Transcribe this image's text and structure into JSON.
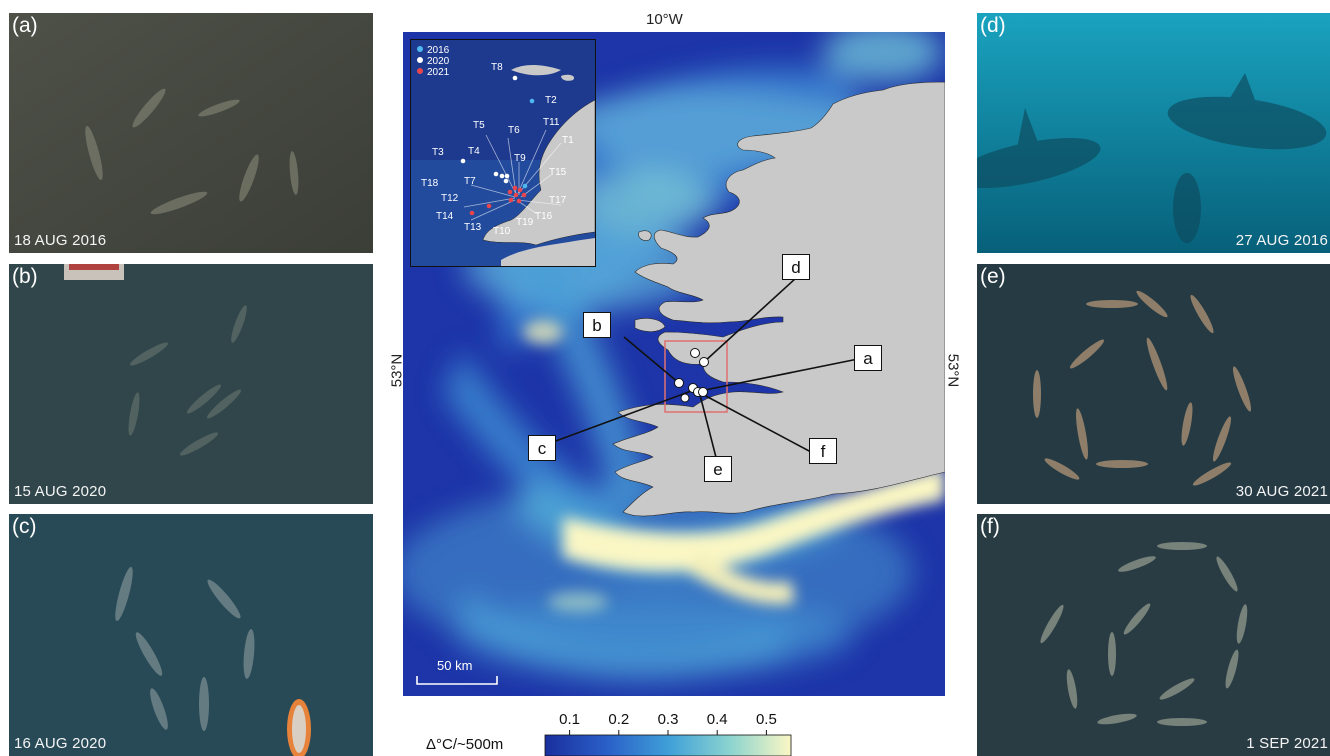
{
  "photos": {
    "a": {
      "label": "(a)",
      "date": "18 AUG 2016"
    },
    "b": {
      "label": "(b)",
      "date": "15 AUG 2020"
    },
    "c": {
      "label": "(c)",
      "date": "16 AUG 2020"
    },
    "d": {
      "label": "(d)",
      "date": "27 AUG 2016"
    },
    "e": {
      "label": "(e)",
      "date": "30 AUG 2021"
    },
    "f": {
      "label": "(f)",
      "date": "1 SEP 2021"
    }
  },
  "map": {
    "top_label": "10°W",
    "left_label": "53°N",
    "right_label": "53°N",
    "scale_bar": "50 km",
    "callouts": [
      "a",
      "b",
      "c",
      "d",
      "e",
      "f"
    ]
  },
  "inset": {
    "legend": [
      {
        "label": "2016",
        "color": "#4fb8ef"
      },
      {
        "label": "2020",
        "color": "#ffffff"
      },
      {
        "label": "2021",
        "color": "#e8454c"
      }
    ],
    "tags": [
      "T8",
      "T2",
      "T5",
      "T6",
      "T11",
      "T1",
      "T3",
      "T4",
      "T9",
      "T15",
      "T18",
      "T7",
      "T17",
      "T12",
      "T16",
      "T14",
      "T13",
      "T19",
      "T10"
    ]
  },
  "colorbar": {
    "title": "Δ°C/~500m",
    "ticks": [
      "0.1",
      "0.2",
      "0.3",
      "0.4",
      "0.5"
    ],
    "range": [
      0.05,
      0.55
    ],
    "colors": [
      "#1a2f9e",
      "#2a5fc8",
      "#3f9fd8",
      "#8ad3cf",
      "#fbf7c4"
    ]
  }
}
